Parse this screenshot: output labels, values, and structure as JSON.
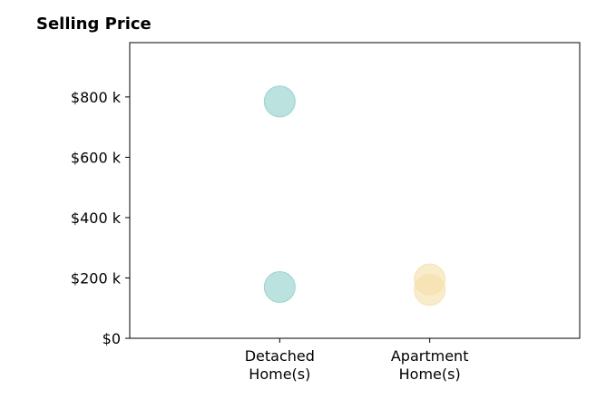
{
  "chart_data": {
    "type": "scatter",
    "title": "Selling Price",
    "xlabel": "",
    "ylabel": "",
    "categories": [
      "Detached\nHome(s)",
      "Apartment\nHome(s)"
    ],
    "ylim": [
      0,
      980000
    ],
    "y_ticks": [
      {
        "value": 0,
        "label": "$0"
      },
      {
        "value": 200000,
        "label": "$200 k"
      },
      {
        "value": 400000,
        "label": "$400 k"
      },
      {
        "value": 600000,
        "label": "$600 k"
      },
      {
        "value": 800000,
        "label": "$800 k"
      }
    ],
    "grid": false,
    "series": [
      {
        "category": "Detached\nHome(s)",
        "color": "#8ecfc9",
        "values": [
          785000,
          170000
        ]
      },
      {
        "category": "Apartment\nHome(s)",
        "color": "#f5dfa8",
        "values": [
          195000,
          160000
        ]
      }
    ]
  }
}
